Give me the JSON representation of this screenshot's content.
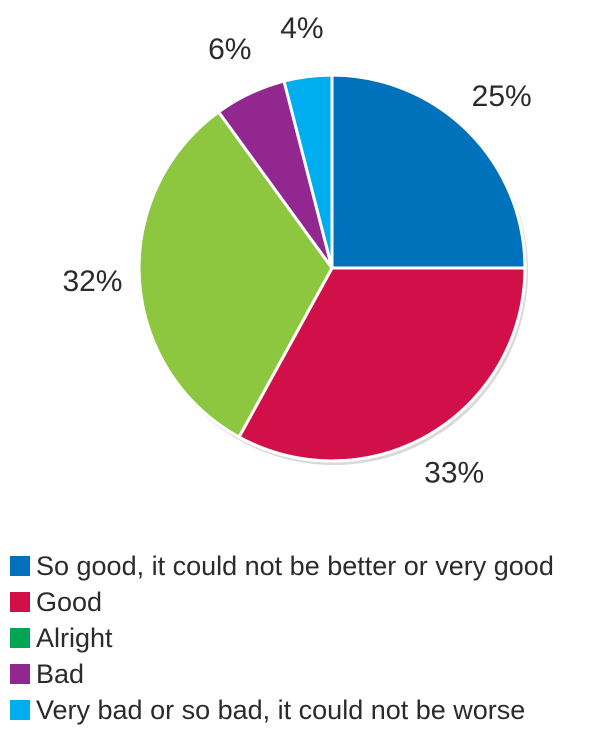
{
  "chart_data": {
    "type": "pie",
    "title": "",
    "legend_position": "bottom",
    "slices": [
      {
        "label": "So good, it could not be better or very good",
        "value": 25,
        "value_label": "25%",
        "color": "#0072bc",
        "legend_color": "#0072bc"
      },
      {
        "label": "Good",
        "value": 33,
        "value_label": "33%",
        "color": "#d1104a",
        "legend_color": "#d1104a"
      },
      {
        "label": "Alright",
        "value": 32,
        "value_label": "32%",
        "color": "#8dc63f",
        "legend_color": "#00a651"
      },
      {
        "label": "Bad",
        "value": 6,
        "value_label": "6%",
        "color": "#92278f",
        "legend_color": "#92278f"
      },
      {
        "label": "Very bad or so bad, it could not be worse",
        "value": 4,
        "value_label": "4%",
        "color": "#00aeef",
        "legend_color": "#00aeef"
      }
    ]
  }
}
